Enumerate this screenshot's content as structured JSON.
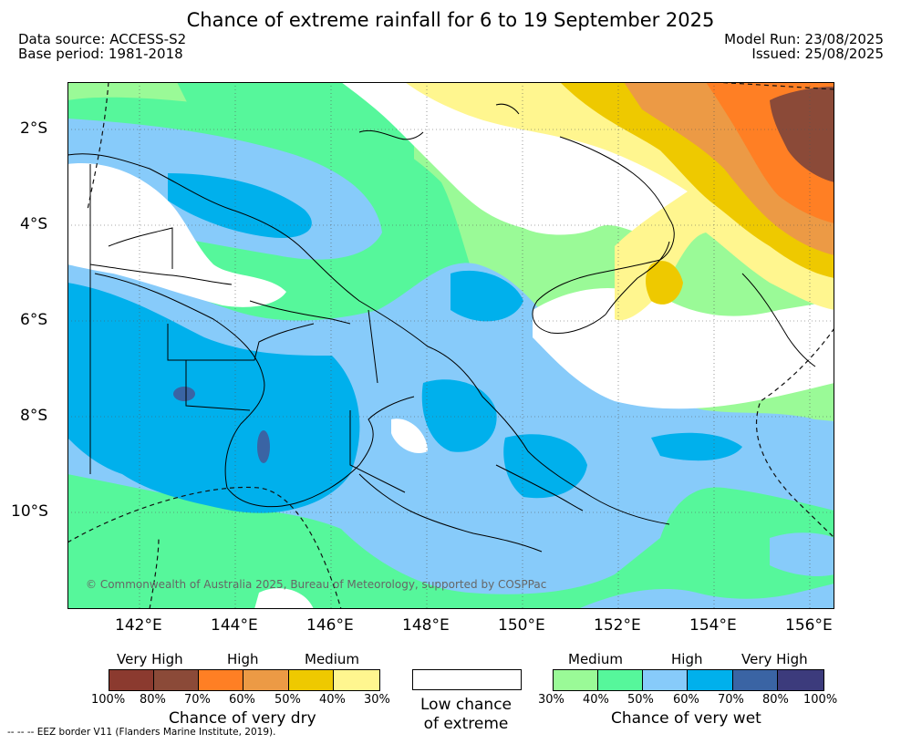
{
  "title": "Chance of extreme rainfall for 6 to 19 September 2025",
  "data_source": "Data source: ACCESS-S2",
  "base_period": "Base period: 1981-2018",
  "model_run": "Model Run: 23/08/2025",
  "issued": "Issued: 25/08/2025",
  "lat_labels": [
    "2°S",
    "4°S",
    "6°S",
    "8°S",
    "10°S"
  ],
  "lon_labels": [
    "142°E",
    "144°E",
    "146°E",
    "148°E",
    "150°E",
    "152°E",
    "154°E",
    "156°E"
  ],
  "copyright": "© Commonwealth of Australia 2025, Bureau of Meteorology, supported by COSPPac",
  "colors": {
    "dry": [
      "#8b3a2f",
      "#8b4a38",
      "#ff7f24",
      "#ec9a45",
      "#eec900",
      "#fff68f"
    ],
    "wet": [
      "#9afa97",
      "#56f79b",
      "#87cbfa",
      "#00b0ec",
      "#3a64a4",
      "#3c3b7c"
    ],
    "low": "#ffffff"
  },
  "legend": {
    "dry": {
      "levels": [
        "Very High",
        "High",
        "Medium"
      ],
      "ticks": [
        "100%",
        "80%",
        "70%",
        "60%",
        "50%",
        "40%",
        "30%"
      ],
      "caption": "Chance of very dry"
    },
    "low": {
      "line1": "Low chance",
      "line2": "of extreme"
    },
    "wet": {
      "levels": [
        "Medium",
        "High",
        "Very High"
      ],
      "ticks": [
        "30%",
        "40%",
        "50%",
        "60%",
        "70%",
        "80%",
        "100%"
      ],
      "caption": "Chance of very wet"
    }
  },
  "footnote": "-- -- -- EEZ border V11 (Flanders Marine Institute, 2019)."
}
